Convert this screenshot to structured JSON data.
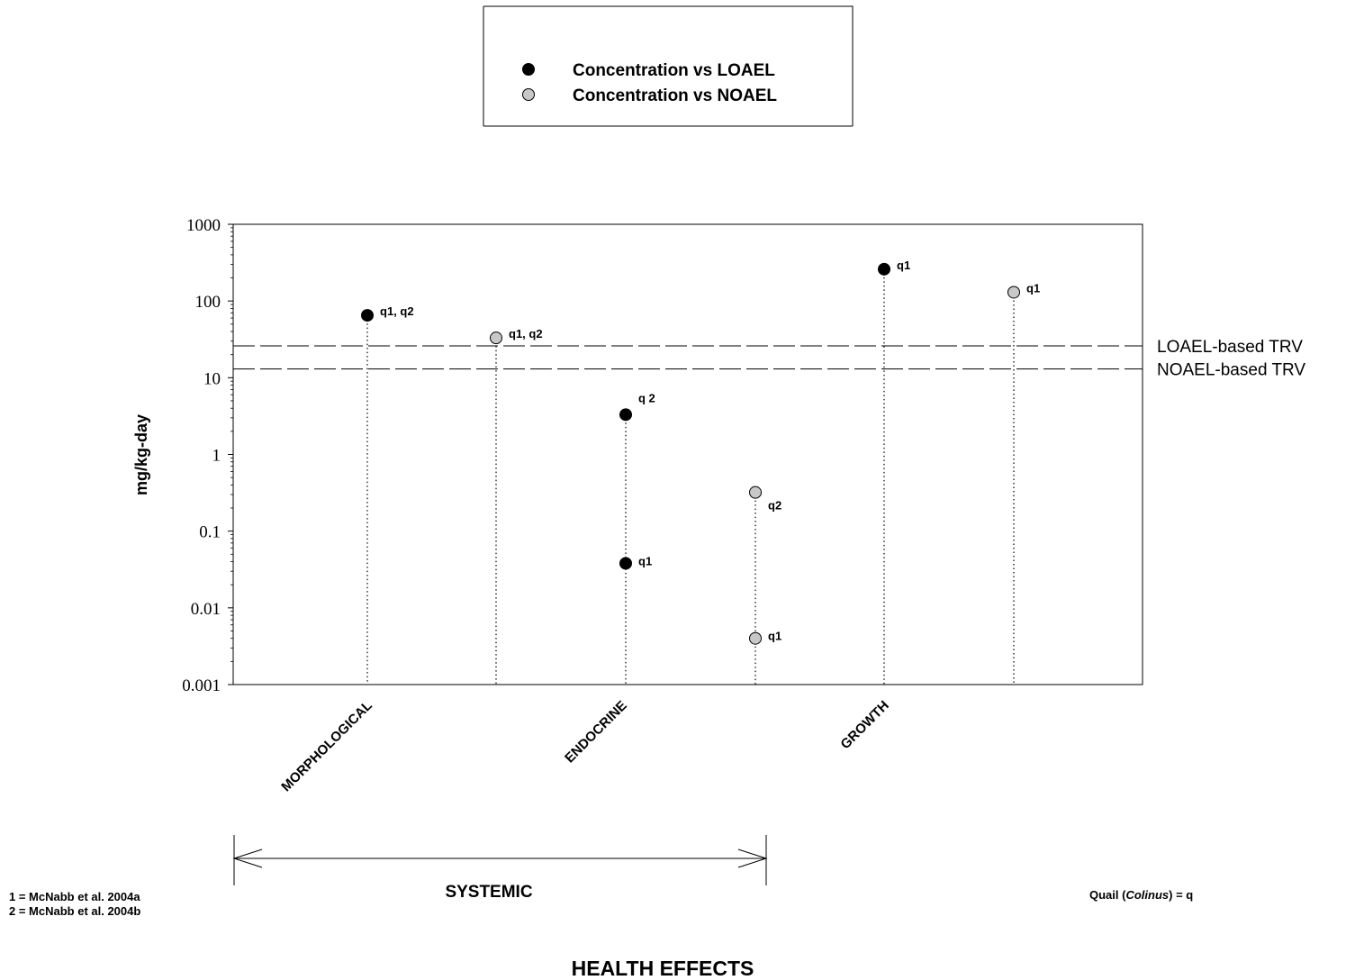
{
  "chart_data": {
    "type": "scatter",
    "y_scale": "log",
    "ylim": [
      0.001,
      1000
    ],
    "ylabel": "mg/kg-day",
    "xlabel": "HEALTH EFFECTS",
    "yticks": [
      "0.001",
      "0.01",
      "0.1",
      "1",
      "10",
      "100",
      "1000"
    ],
    "categories": [
      "MORPHOLOGICAL",
      "ENDOCRINE",
      "GROWTH"
    ],
    "category_group": {
      "label": "SYSTEMIC",
      "spans": [
        "MORPHOLOGICAL",
        "ENDOCRINE"
      ]
    },
    "legend": {
      "placement": "top-center",
      "entries": [
        {
          "label": "Concentration vs LOAEL",
          "color": "#000000"
        },
        {
          "label": "Concentration vs NOAEL",
          "color": "#c8c8c8"
        }
      ]
    },
    "reference_lines": [
      {
        "label": "LOAEL-based TRV",
        "y": 26
      },
      {
        "label": "NOAEL-based TRV",
        "y": 13
      }
    ],
    "series": [
      {
        "name": "Concentration vs LOAEL",
        "color": "#000000",
        "points": [
          {
            "category": "MORPHOLOGICAL",
            "y": 65,
            "label": "q1, q2"
          },
          {
            "category": "ENDOCRINE",
            "y": 3.3,
            "label": "q 2"
          },
          {
            "category": "ENDOCRINE",
            "y": 0.038,
            "label": "q1"
          },
          {
            "category": "GROWTH",
            "y": 260,
            "label": "q1"
          }
        ]
      },
      {
        "name": "Concentration vs NOAEL",
        "color": "#c8c8c8",
        "points": [
          {
            "category": "MORPHOLOGICAL",
            "y": 33,
            "label": "q1, q2"
          },
          {
            "category": "ENDOCRINE",
            "y": 0.32,
            "label": "q2"
          },
          {
            "category": "ENDOCRINE",
            "y": 0.004,
            "label": "q1"
          },
          {
            "category": "GROWTH",
            "y": 130,
            "label": "q1"
          }
        ]
      }
    ]
  },
  "footnotes": [
    "1 = McNabb et al. 2004a",
    "2 = McNabb et al. 2004b"
  ],
  "species_key": {
    "prefix": "Quail (",
    "genus": "Colinus",
    "suffix": ") = q"
  }
}
